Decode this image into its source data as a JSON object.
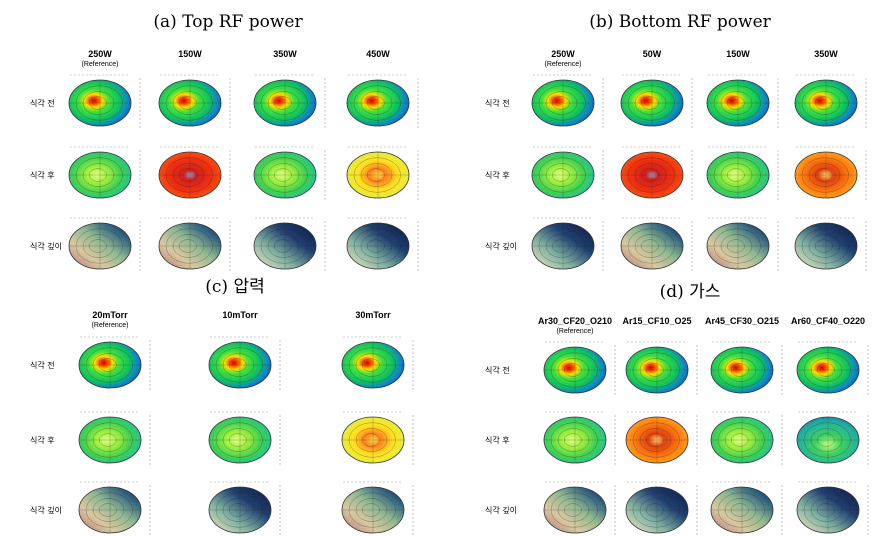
{
  "panels": [
    {
      "title": "(a) Top RF power",
      "columns": [
        "250W",
        "150W",
        "350W",
        "450W"
      ],
      "reference_note": "(Reference)",
      "rows": [
        "식각 전",
        "식각 후",
        "식각 깊이"
      ]
    },
    {
      "title": "(b) Bottom RF power",
      "columns": [
        "250W",
        "50W",
        "150W",
        "350W"
      ],
      "reference_note": "(Reference)",
      "rows": [
        "식각 전",
        "식각 후",
        "식각 깊이"
      ]
    },
    {
      "title": "(c) 압력",
      "columns": [
        "20mTorr",
        "10mTorr",
        "30mTorr"
      ],
      "reference_note": "(Reference)",
      "rows": [
        "식각 전",
        "식각 후",
        "식각 깊이"
      ]
    },
    {
      "title": "(d) 가스",
      "columns": [
        "Ar30_CF20_O210",
        "Ar15_CF10_O25",
        "Ar45_CF30_O215",
        "Ar60_CF40_O220"
      ],
      "reference_note": "(Reference)",
      "rows": [
        "식각 전",
        "식각 후",
        "식각 깊이"
      ]
    }
  ]
}
